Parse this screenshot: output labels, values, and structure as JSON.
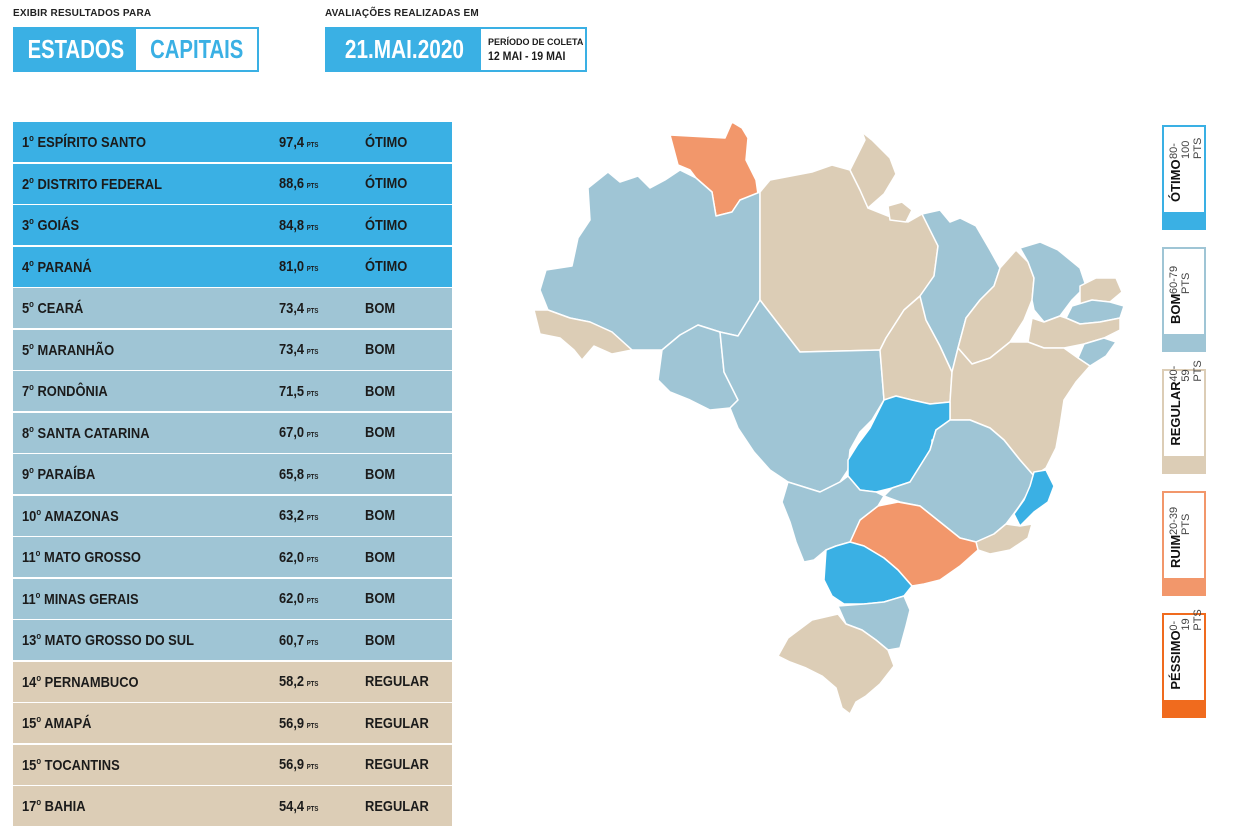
{
  "header": {
    "view_label": "EXIBIR RESULTADOS PARA",
    "toggle": {
      "left": "ESTADOS",
      "right": "CAPITAIS"
    },
    "eval_label": "AVALIAÇÕES REALIZADAS EM",
    "date": "21.MAI.2020",
    "period_label": "PERÍODO DE COLETA",
    "period_value": "12 MAI - 19 MAI"
  },
  "unit": "PTS",
  "ranking": [
    {
      "pos": "1",
      "name": "ESPÍRITO SANTO",
      "score": "97,4",
      "cat": "ÓTIMO"
    },
    {
      "pos": "2",
      "name": "DISTRITO FEDERAL",
      "score": "88,6",
      "cat": "ÓTIMO"
    },
    {
      "pos": "3",
      "name": "GOIÁS",
      "score": "84,8",
      "cat": "ÓTIMO"
    },
    {
      "pos": "4",
      "name": "PARANÁ",
      "score": "81,0",
      "cat": "ÓTIMO"
    },
    {
      "pos": "5",
      "name": "CEARÁ",
      "score": "73,4",
      "cat": "BOM"
    },
    {
      "pos": "5",
      "name": "MARANHÃO",
      "score": "73,4",
      "cat": "BOM"
    },
    {
      "pos": "7",
      "name": "RONDÔNIA",
      "score": "71,5",
      "cat": "BOM"
    },
    {
      "pos": "8",
      "name": "SANTA CATARINA",
      "score": "67,0",
      "cat": "BOM"
    },
    {
      "pos": "9",
      "name": "PARAÍBA",
      "score": "65,8",
      "cat": "BOM"
    },
    {
      "pos": "10",
      "name": "AMAZONAS",
      "score": "63,2",
      "cat": "BOM"
    },
    {
      "pos": "11",
      "name": "MATO GROSSO",
      "score": "62,0",
      "cat": "BOM"
    },
    {
      "pos": "11",
      "name": "MINAS GERAIS",
      "score": "62,0",
      "cat": "BOM"
    },
    {
      "pos": "13",
      "name": "MATO GROSSO DO SUL",
      "score": "60,7",
      "cat": "BOM"
    },
    {
      "pos": "14",
      "name": "PERNAMBUCO",
      "score": "58,2",
      "cat": "REGULAR"
    },
    {
      "pos": "15",
      "name": "AMAPÁ",
      "score": "56,9",
      "cat": "REGULAR"
    },
    {
      "pos": "15",
      "name": "TOCANTINS",
      "score": "56,9",
      "cat": "REGULAR"
    },
    {
      "pos": "17",
      "name": "BAHIA",
      "score": "54,4",
      "cat": "REGULAR"
    }
  ],
  "legend": [
    {
      "label": "ÓTIMO",
      "range": "80-100 PTS",
      "color": "#3ab0e4"
    },
    {
      "label": "BOM",
      "range": "60-79 PTS",
      "color": "#9fc5d5"
    },
    {
      "label": "REGULAR",
      "range": "40-59 PTS",
      "color": "#dccdb6"
    },
    {
      "label": "RUIM",
      "range": "20-39 PTS",
      "color": "#f2976b"
    },
    {
      "label": "PÉSSIMO",
      "range": "0-19 PTS",
      "color": "#f06b1e"
    }
  ],
  "colors": {
    "otimo": "#3ab0e4",
    "bom": "#9fc5d5",
    "regular": "#dccdb6",
    "ruim": "#f2976b",
    "pessimo": "#f06b1e"
  }
}
